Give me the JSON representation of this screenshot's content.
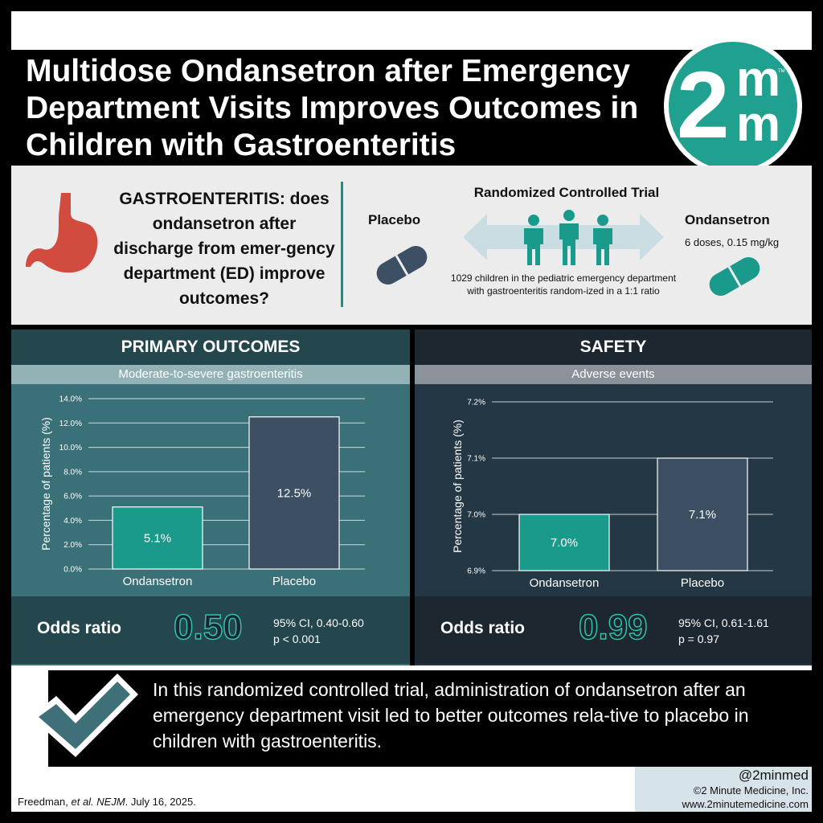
{
  "header": {
    "title": "Multidose Ondansetron after Emergency Department Visits Improves Outcomes in Children with Gastroenteritis",
    "logo_digit": "2",
    "logo_m1": "m",
    "logo_m2": "m",
    "logo_tm": "TM"
  },
  "intro": {
    "question": "GASTROENTERITIS: does ondansetron after discharge from emer-gency department (ED) improve outcomes?",
    "placebo_label": "Placebo",
    "rct_title": "Randomized Controlled Trial",
    "rct_description": "1029 children in the pediatric emergency department with gastroenteritis random-ized in a 1:1 ratio",
    "ondansetron_label": "Ondansetron",
    "ondansetron_dose": "6 doses, 0.15 mg/kg"
  },
  "primary": {
    "heading": "PRIMARY OUTCOMES",
    "subheading": "Moderate-to-severe gastroenteritis",
    "odds_label": "Odds ratio",
    "odds_value": "0.50",
    "ci": "95% CI, 0.40-0.60",
    "p": "p < 0.001"
  },
  "safety": {
    "heading": "SAFETY",
    "subheading": "Adverse events",
    "odds_label": "Odds ratio",
    "odds_value": "0.99",
    "ci": "95% CI, 0.61-1.61",
    "p": "p = 0.97"
  },
  "chart_data": [
    {
      "type": "bar",
      "title": "Moderate-to-severe gastroenteritis",
      "ylabel": "Percentage of patients (%)",
      "categories": [
        "Ondansetron",
        "Placebo"
      ],
      "values": [
        5.1,
        12.5
      ],
      "data_labels": [
        "5.1%",
        "12.5%"
      ],
      "ylim": [
        0,
        14
      ],
      "yticks": [
        0,
        2,
        4,
        6,
        8,
        10,
        12,
        14
      ],
      "ytick_labels": [
        "0.0%",
        "2.0%",
        "4.0%",
        "6.0%",
        "8.0%",
        "10.0%",
        "12.0%",
        "14.0%"
      ],
      "bar_colors": [
        "#1a9a8a",
        "#3d4f63"
      ],
      "grid": true
    },
    {
      "type": "bar",
      "title": "Adverse events",
      "ylabel": "Percentage of patients (%)",
      "categories": [
        "Ondansetron",
        "Placebo"
      ],
      "values": [
        7.0,
        7.1
      ],
      "data_labels": [
        "7.0%",
        "7.1%"
      ],
      "ylim": [
        6.9,
        7.2
      ],
      "yticks": [
        6.9,
        7.0,
        7.1,
        7.2
      ],
      "ytick_labels": [
        "6.9%",
        "7.0%",
        "7.1%",
        "7.2%"
      ],
      "bar_colors": [
        "#1a9a8a",
        "#3d4f63"
      ],
      "grid": true
    }
  ],
  "conclusion": {
    "text": "In this randomized controlled trial, administration of ondansetron after an emergency department visit led to better outcomes rela-tive to placebo in children with gastroenteritis."
  },
  "footer": {
    "citation_author": "Freedman, ",
    "citation_etal": "et al. NEJM",
    "citation_date": ". July 16, 2025.",
    "handle": "@2minmed",
    "copyright": "©2 Minute Medicine, Inc.",
    "website": "www.2minutemedicine.com"
  },
  "colors": {
    "teal": "#20a08f",
    "ondansetron_bar": "#1a9a8a",
    "placebo_bar": "#3d4f63",
    "primary_panel": "#3a7078",
    "safety_panel": "#243744",
    "stomach": "#d24b3f",
    "placebo_pill": "#3d4f63"
  },
  "icons": [
    "stomach-icon",
    "placebo-pill-icon",
    "ondansetron-pill-icon",
    "people-icon",
    "double-arrow-icon",
    "checkmark-icon"
  ]
}
